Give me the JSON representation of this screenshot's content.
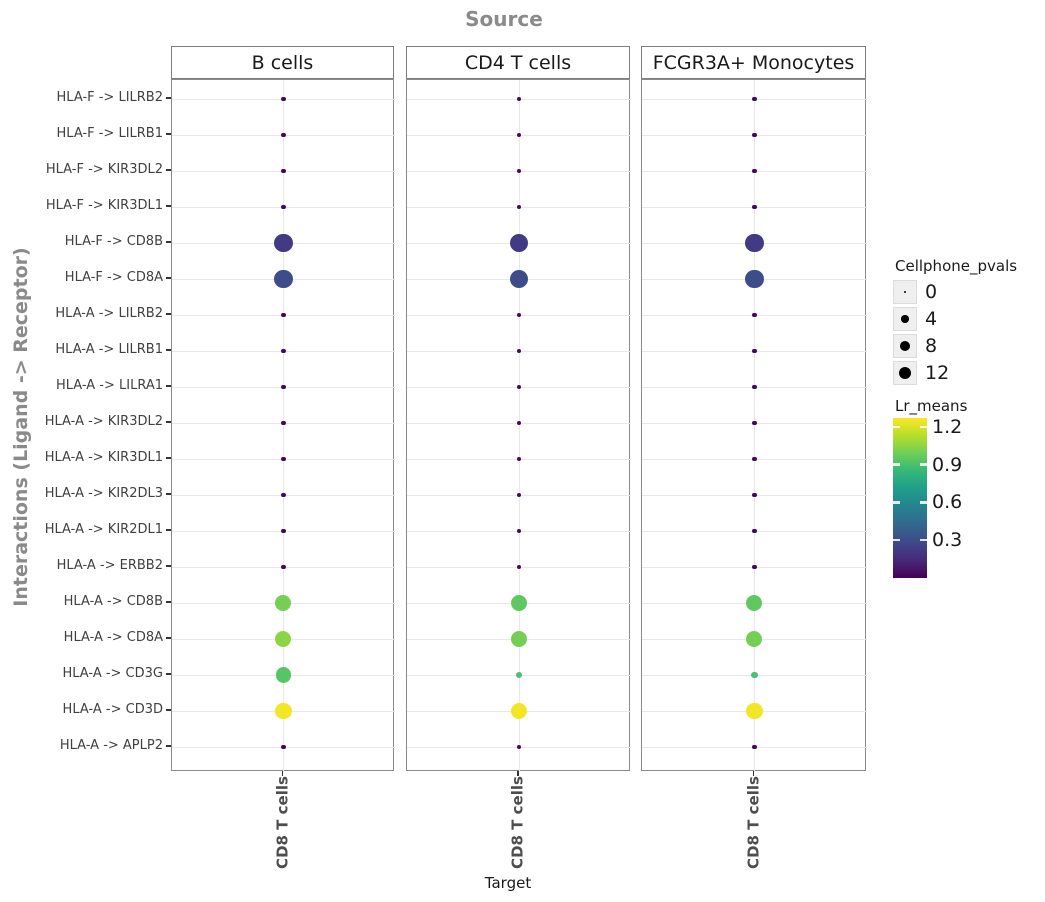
{
  "chart_data": {
    "type": "scatter",
    "subtype": "faceted_bubble_dotplot",
    "title": "Source",
    "xlabel": "Target",
    "ylabel": "Interactions (Ligand -> Receptor)",
    "facets": [
      "B cells",
      "CD4 T cells",
      "FCGR3A+ Monocytes"
    ],
    "x_categories": [
      "CD8 T cells"
    ],
    "y_categories_order": "top_to_bottom",
    "y_categories": [
      "HLA-F -> LILRB2",
      "HLA-F -> LILRB1",
      "HLA-F -> KIR3DL2",
      "HLA-F -> KIR3DL1",
      "HLA-F -> CD8B",
      "HLA-F -> CD8A",
      "HLA-A -> LILRB2",
      "HLA-A -> LILRB1",
      "HLA-A -> LILRA1",
      "HLA-A -> KIR3DL2",
      "HLA-A -> KIR3DL1",
      "HLA-A -> KIR2DL3",
      "HLA-A -> KIR2DL1",
      "HLA-A -> ERBB2",
      "HLA-A -> CD8B",
      "HLA-A -> CD8A",
      "HLA-A -> CD3G",
      "HLA-A -> CD3D",
      "HLA-A -> APLP2"
    ],
    "grid": true,
    "legend_position": "right",
    "size_legend": {
      "title": "Cellphone_pvals",
      "breaks": [
        0,
        4,
        8,
        12
      ]
    },
    "color_legend": {
      "title": "Lr_means",
      "breaks": [
        1.2,
        0.9,
        0.6,
        0.3
      ],
      "domain": [
        0,
        1.27
      ],
      "palette": "viridis",
      "viridis_hex": [
        "#440154",
        "#482878",
        "#3e4989",
        "#31688e",
        "#26828e",
        "#1f9e89",
        "#35b779",
        "#6ece58",
        "#b5de2b",
        "#fde725"
      ]
    },
    "series": [
      {
        "name": "B cells",
        "target": "CD8 T cells",
        "cellphone_pvals": [
          1,
          1,
          1,
          1,
          26,
          26,
          1,
          1,
          1,
          1,
          1,
          1,
          1,
          1,
          20,
          20,
          19,
          22,
          1
        ],
        "lr_means": [
          0.03,
          0.03,
          0.03,
          0.03,
          0.22,
          0.3,
          0.03,
          0.03,
          0.03,
          0.03,
          0.03,
          0.03,
          0.03,
          0.03,
          1.0,
          1.05,
          0.93,
          1.25,
          0.03
        ]
      },
      {
        "name": "CD4 T cells",
        "target": "CD8 T cells",
        "cellphone_pvals": [
          1,
          1,
          1,
          1,
          26,
          26,
          1,
          1,
          1,
          1,
          1,
          1,
          1,
          1,
          20,
          20,
          3,
          22,
          1
        ],
        "lr_means": [
          0.03,
          0.03,
          0.03,
          0.03,
          0.22,
          0.3,
          0.03,
          0.03,
          0.03,
          0.03,
          0.03,
          0.03,
          0.03,
          0.03,
          0.95,
          1.0,
          0.9,
          1.25,
          0.03
        ]
      },
      {
        "name": "FCGR3A+ Monocytes",
        "target": "CD8 T cells",
        "cellphone_pvals": [
          1,
          1,
          1,
          1,
          26,
          26,
          1,
          1,
          1,
          1,
          1,
          1,
          1,
          1,
          20,
          20,
          3,
          22,
          1
        ],
        "lr_means": [
          0.03,
          0.03,
          0.03,
          0.03,
          0.22,
          0.3,
          0.03,
          0.03,
          0.03,
          0.03,
          0.03,
          0.03,
          0.03,
          0.03,
          0.95,
          1.0,
          0.9,
          1.25,
          0.03
        ]
      }
    ]
  }
}
